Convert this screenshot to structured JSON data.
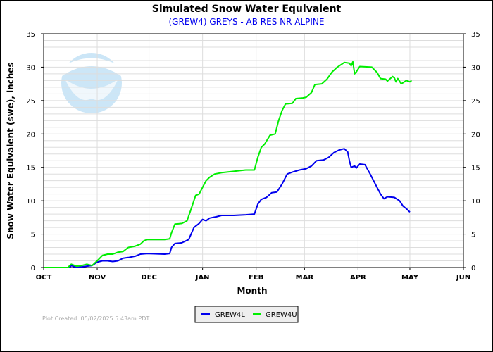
{
  "chart_data": {
    "type": "line",
    "title": "Simulated Snow Water Equivalent",
    "subtitle": "(GREW4) GREYS - AB RES NR ALPINE",
    "xlabel": "Month",
    "ylabel": "Snow Water Equivalent (swe),  inches",
    "ylim": [
      0,
      35
    ],
    "yticks": [
      0,
      5,
      10,
      15,
      20,
      25,
      30,
      35
    ],
    "xlim_days_from_oct1": [
      0,
      243
    ],
    "xticks": [
      {
        "label": "OCT",
        "day": 0
      },
      {
        "label": "NOV",
        "day": 31
      },
      {
        "label": "DEC",
        "day": 61
      },
      {
        "label": "JAN",
        "day": 92
      },
      {
        "label": "FEB",
        "day": 123
      },
      {
        "label": "MAR",
        "day": 151
      },
      {
        "label": "APR",
        "day": 182
      },
      {
        "label": "MAY",
        "day": 212
      },
      {
        "label": "JUN",
        "day": 243
      }
    ],
    "grid": true,
    "legend_position": "bottom-center",
    "series": [
      {
        "name": "GREW4L",
        "color": "#0000ee",
        "x": [
          0,
          15,
          16,
          19,
          22,
          25,
          28,
          31,
          34,
          37,
          40,
          43,
          46,
          49,
          53,
          56,
          60,
          70,
          73,
          74,
          76,
          80,
          84,
          87,
          90,
          92,
          94,
          96,
          100,
          103,
          110,
          117,
          122,
          124,
          126,
          129,
          132,
          135,
          138,
          141,
          144,
          148,
          152,
          155,
          158,
          162,
          165,
          168,
          171,
          174,
          176,
          177,
          178,
          180,
          181,
          183,
          186,
          189,
          192,
          195,
          197,
          199,
          203,
          206,
          208,
          210,
          212
        ],
        "y": [
          0,
          0,
          0.3,
          0,
          0.1,
          0.2,
          0.3,
          0.8,
          1.0,
          1.0,
          0.9,
          1.0,
          1.4,
          1.5,
          1.7,
          2.0,
          2.1,
          2.0,
          2.1,
          3.0,
          3.6,
          3.7,
          4.2,
          6.0,
          6.6,
          7.2,
          7.0,
          7.4,
          7.6,
          7.8,
          7.8,
          7.9,
          8.0,
          9.5,
          10.2,
          10.5,
          11.2,
          11.3,
          12.5,
          14.0,
          14.3,
          14.6,
          14.8,
          15.2,
          16.0,
          16.1,
          16.5,
          17.2,
          17.6,
          17.8,
          17.3,
          16.0,
          15.0,
          15.2,
          14.9,
          15.5,
          15.4,
          14.0,
          12.5,
          11.0,
          10.3,
          10.6,
          10.5,
          10.0,
          9.2,
          8.8,
          8.3
        ]
      },
      {
        "name": "GREW4U",
        "color": "#00ee00",
        "x": [
          0,
          14,
          16,
          19,
          22,
          25,
          28,
          31,
          34,
          37,
          40,
          43,
          46,
          49,
          53,
          56,
          58,
          60,
          70,
          73,
          74,
          76,
          80,
          83,
          85,
          88,
          90,
          92,
          94,
          96,
          99,
          103,
          110,
          113,
          117,
          122,
          124,
          126,
          128,
          131,
          134,
          136,
          138,
          140,
          144,
          146,
          150,
          152,
          155,
          157,
          161,
          164,
          167,
          170,
          174,
          177,
          178,
          179,
          180,
          181,
          183,
          190,
          193,
          195,
          198,
          199,
          202,
          203,
          204,
          205,
          207,
          210,
          212,
          213
        ],
        "y": [
          0,
          0,
          0.5,
          0.2,
          0.3,
          0.5,
          0.3,
          1.0,
          1.8,
          2.0,
          2.0,
          2.3,
          2.4,
          3.0,
          3.2,
          3.5,
          4.0,
          4.2,
          4.2,
          4.3,
          5.2,
          6.5,
          6.6,
          7.0,
          8.5,
          10.8,
          11.0,
          12.0,
          13.0,
          13.5,
          14.0,
          14.2,
          14.4,
          14.5,
          14.6,
          14.6,
          16.5,
          18.0,
          18.5,
          19.8,
          20.0,
          22.0,
          23.5,
          24.5,
          24.6,
          25.3,
          25.4,
          25.5,
          26.2,
          27.4,
          27.5,
          28.2,
          29.3,
          30.0,
          30.7,
          30.6,
          30.2,
          30.8,
          29.0,
          29.3,
          30.1,
          30.0,
          29.2,
          28.3,
          28.2,
          27.9,
          28.6,
          28.4,
          27.8,
          28.3,
          27.5,
          28.0,
          27.8,
          28.0
        ]
      }
    ]
  },
  "footer": {
    "plot_created": "Plot Created: 05/02/2025 5:43am PDT"
  }
}
